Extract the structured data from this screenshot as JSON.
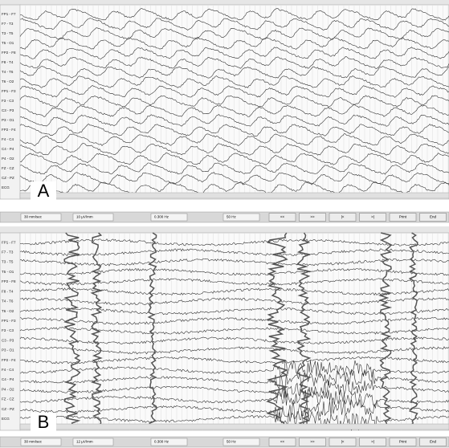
{
  "panels": [
    {
      "label": "A",
      "channels": [
        "FP1 - F7",
        "F7 - T3",
        "T3 - T5",
        "T5 - O1",
        "FP2 - F8",
        "F8 - T4",
        "T4 - T6",
        "T6 - O2",
        "FP1 - F3",
        "F3 - C3",
        "C3 - P3",
        "P3 - O1",
        "FP2 - F4",
        "F4 - C4",
        "C4 - P4",
        "P4 - O2",
        "FZ - CZ",
        "CZ - PZ",
        "ECG"
      ],
      "toolbar": {
        "speed": "30 mm/sec",
        "gain": "10 µV/mm",
        "low_filter": "0.300 Hz",
        "high_filter": "50 Hz",
        "buttons": [
          "<<",
          ">>",
          "|<",
          ">|",
          "Print",
          "End"
        ]
      }
    },
    {
      "label": "B",
      "channels": [
        "FP1 - F7",
        "F7 - T3",
        "T3 - T5",
        "T5 - O1",
        "FP2 - F8",
        "F8 - T4",
        "T4 - T6",
        "T6 - O2",
        "FP1 - F3",
        "F3 - C3",
        "C3 - P3",
        "P3 - O1",
        "FP2 - F4",
        "F4 - C4",
        "C4 - P4",
        "P4 - O2",
        "FZ - CZ",
        "CZ - PZ",
        "ECG"
      ],
      "toolbar": {
        "speed": "30 mm/sec",
        "gain": "12 µV/mm",
        "low_filter": "0.300 Hz",
        "high_filter": "50 Hz",
        "buttons": [
          "<<",
          ">>",
          "|<",
          ">|",
          "Print",
          "End"
        ]
      }
    }
  ]
}
